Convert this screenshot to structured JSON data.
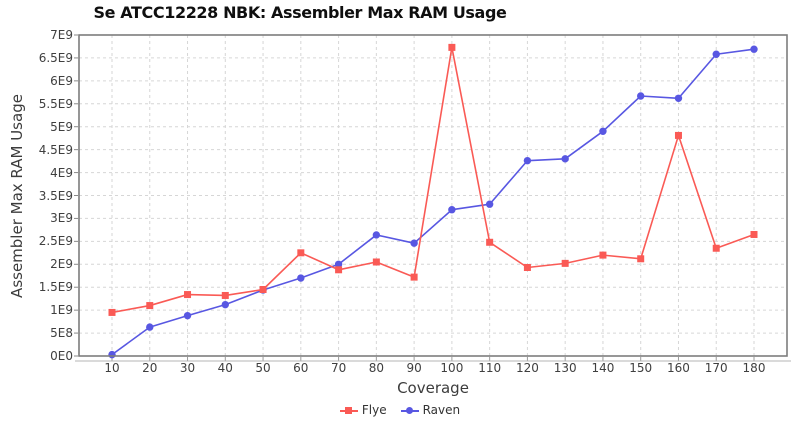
{
  "title": "Se ATCC12228 NBK: Assembler Max RAM Usage",
  "chart_data": {
    "type": "line",
    "title": "Se ATCC12228 NBK: Assembler Max RAM Usage",
    "xlabel": "Coverage",
    "ylabel": "Assembler Max RAM Usage",
    "x": [
      10,
      20,
      30,
      40,
      50,
      60,
      70,
      80,
      90,
      100,
      110,
      120,
      130,
      140,
      150,
      160,
      170,
      180
    ],
    "xtick_labels": [
      "10",
      "20",
      "30",
      "40",
      "50",
      "60",
      "70",
      "80",
      "90",
      "100",
      "110",
      "120",
      "130",
      "140",
      "150",
      "160",
      "170",
      "180"
    ],
    "series": [
      {
        "name": "Flye",
        "color": "#fa5a55",
        "marker": "square",
        "values": [
          950000000.0,
          1100000000.0,
          1340000000.0,
          1320000000.0,
          1450000000.0,
          2250000000.0,
          1880000000.0,
          2050000000.0,
          1720000000.0,
          6730000000.0,
          2480000000.0,
          1930000000.0,
          2020000000.0,
          2200000000.0,
          2120000000.0,
          4810000000.0,
          2350000000.0,
          2650000000.0
        ]
      },
      {
        "name": "Raven",
        "color": "#5857e2",
        "marker": "circle",
        "values": [
          30000000.0,
          630000000.0,
          880000000.0,
          1120000000.0,
          1440000000.0,
          1700000000.0,
          2000000000.0,
          2640000000.0,
          2460000000.0,
          3190000000.0,
          3310000000.0,
          4260000000.0,
          4300000000.0,
          4900000000.0,
          5670000000.0,
          5620000000.0,
          6580000000.0,
          6690000000.0
        ]
      }
    ],
    "ylim": [
      0,
      7000000000.0
    ],
    "yticks": [
      0,
      500000000.0,
      1000000000.0,
      1500000000.0,
      2000000000.0,
      2500000000.0,
      3000000000.0,
      3500000000.0,
      4000000000.0,
      4500000000.0,
      5000000000.0,
      5500000000.0,
      6000000000.0,
      6500000000.0,
      7000000000.0
    ],
    "ytick_labels": [
      "0E0",
      "5E8",
      "1E9",
      "1.5E9",
      "2E9",
      "2.5E9",
      "3E9",
      "3.5E9",
      "4E9",
      "4.5E9",
      "5E9",
      "5.5E9",
      "6E9",
      "6.5E9",
      "7E9"
    ],
    "grid": "dashed",
    "legend_position": "bottom",
    "colors": {
      "grid": "#d6d6d6",
      "plot_border": "#7d7d7d",
      "axis_line": "#b4b4b4",
      "tick_text": "#3f3f3f",
      "title_text": "#0f0f0f"
    }
  }
}
